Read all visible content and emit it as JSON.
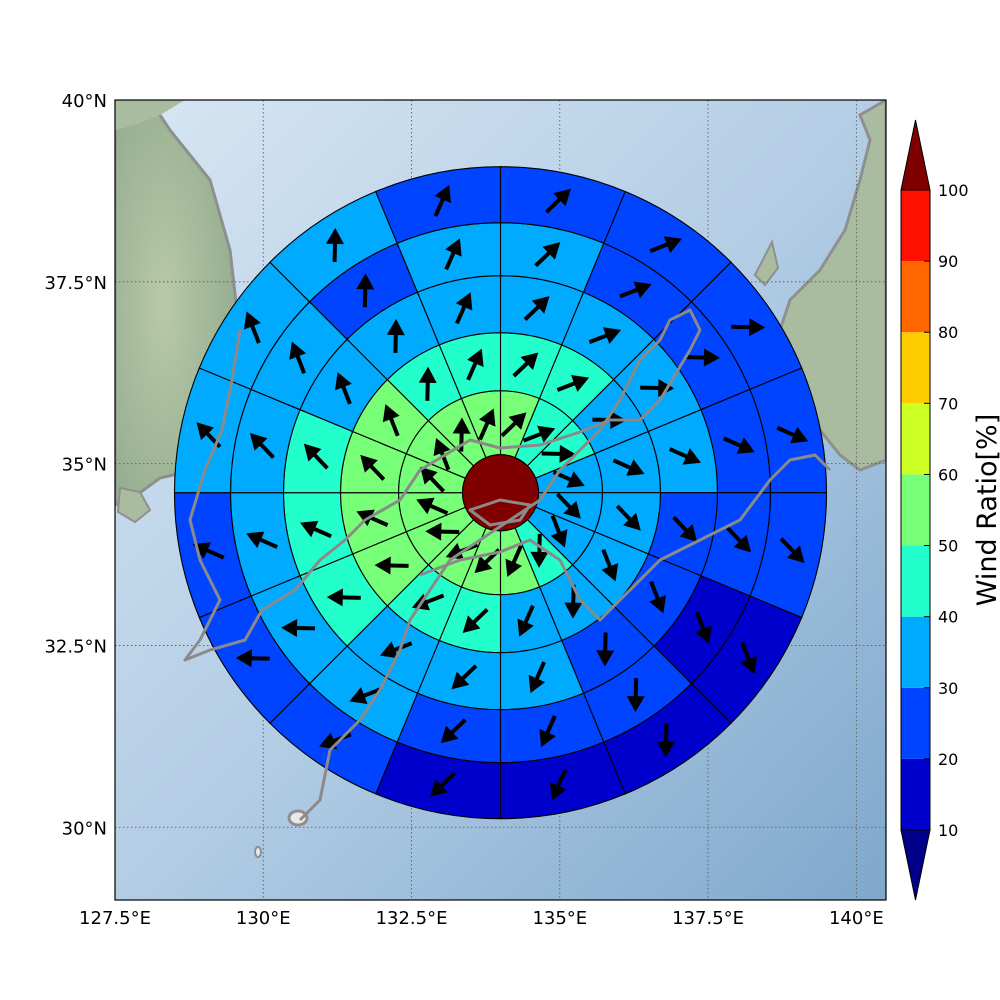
{
  "map": {
    "lon_range": [
      127.5,
      140.5
    ],
    "lat_range": [
      29.0,
      40.0
    ],
    "lon_ticks": [
      "127.5°E",
      "130°E",
      "132.5°E",
      "135°E",
      "137.5°E",
      "140°E"
    ],
    "lat_ticks": [
      "40°N",
      "37.5°N",
      "35°N",
      "32.5°N",
      "30°N"
    ],
    "grid": "dotted",
    "background": "shaded-relief"
  },
  "wind_rose": {
    "center_lon": 134.0,
    "center_lat": 34.6,
    "center_value": 100,
    "ring_count": 5,
    "sector_count": 16,
    "ring_values": [
      [
        50,
        40,
        40,
        30,
        30,
        30,
        40,
        50,
        50,
        50,
        50,
        50,
        50,
        50,
        50,
        50
      ],
      [
        40,
        40,
        30,
        30,
        30,
        30,
        30,
        30,
        40,
        40,
        50,
        50,
        50,
        50,
        40,
        40
      ],
      [
        30,
        30,
        30,
        30,
        20,
        20,
        20,
        30,
        30,
        30,
        40,
        40,
        40,
        30,
        30,
        30
      ],
      [
        30,
        20,
        20,
        20,
        20,
        10,
        20,
        20,
        20,
        30,
        30,
        30,
        30,
        30,
        20,
        30
      ],
      [
        20,
        20,
        20,
        20,
        20,
        10,
        10,
        10,
        10,
        20,
        20,
        20,
        30,
        30,
        30,
        20
      ]
    ]
  },
  "colorbar": {
    "label": "Wind Ratio[%]",
    "ticks": [
      "10",
      "20",
      "30",
      "40",
      "50",
      "60",
      "70",
      "80",
      "90",
      "100"
    ],
    "colors": [
      "#0000cc",
      "#0044ff",
      "#00aaff",
      "#22ffcc",
      "#77ff77",
      "#ccff22",
      "#ffcc00",
      "#ff6600",
      "#ff1100"
    ],
    "under_color": "#00008b",
    "over_color": "#800000"
  }
}
